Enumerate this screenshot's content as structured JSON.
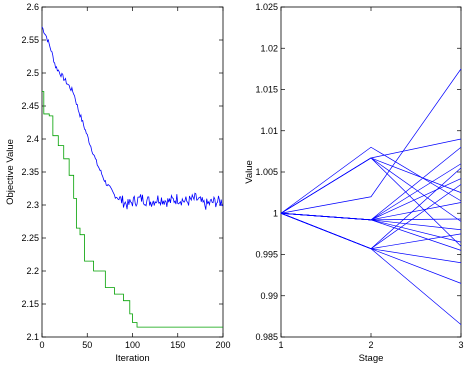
{
  "chart_data": [
    {
      "type": "line",
      "xlabel": "Iteration",
      "ylabel": "Objective Value",
      "xlim": [
        0,
        200
      ],
      "ylim": [
        2.1,
        2.6
      ],
      "xticks": [
        "0",
        "50",
        "100",
        "150",
        "200"
      ],
      "yticks": [
        "2.1",
        "2.15",
        "2.2",
        "2.25",
        "2.3",
        "2.35",
        "2.4",
        "2.45",
        "2.5",
        "2.55",
        "2.6"
      ],
      "grid": false,
      "series": [
        {
          "color": "#0000ff",
          "style": "noisy",
          "points": [
            [
              0,
              2.57
            ],
            [
              5,
              2.555
            ],
            [
              10,
              2.535
            ],
            [
              15,
              2.51
            ],
            [
              20,
              2.5
            ],
            [
              25,
              2.49
            ],
            [
              30,
              2.48
            ],
            [
              35,
              2.47
            ],
            [
              40,
              2.445
            ],
            [
              45,
              2.425
            ],
            [
              50,
              2.405
            ],
            [
              55,
              2.385
            ],
            [
              60,
              2.365
            ],
            [
              65,
              2.35
            ],
            [
              70,
              2.335
            ],
            [
              75,
              2.325
            ],
            [
              80,
              2.315
            ],
            [
              85,
              2.31
            ],
            [
              90,
              2.305
            ],
            [
              95,
              2.3
            ],
            [
              100,
              2.305
            ],
            [
              110,
              2.31
            ],
            [
              120,
              2.305
            ],
            [
              130,
              2.31
            ],
            [
              140,
              2.305
            ],
            [
              150,
              2.31
            ],
            [
              160,
              2.305
            ],
            [
              170,
              2.31
            ],
            [
              180,
              2.3
            ],
            [
              190,
              2.305
            ],
            [
              200,
              2.305
            ]
          ]
        },
        {
          "color": "#00a000",
          "style": "step",
          "points": [
            [
              0,
              2.472
            ],
            [
              2,
              2.438
            ],
            [
              8,
              2.435
            ],
            [
              12,
              2.405
            ],
            [
              18,
              2.39
            ],
            [
              24,
              2.37
            ],
            [
              30,
              2.345
            ],
            [
              35,
              2.31
            ],
            [
              38,
              2.265
            ],
            [
              42,
              2.255
            ],
            [
              47,
              2.215
            ],
            [
              52,
              2.215
            ],
            [
              57,
              2.2
            ],
            [
              65,
              2.2
            ],
            [
              70,
              2.175
            ],
            [
              80,
              2.165
            ],
            [
              90,
              2.155
            ],
            [
              97,
              2.135
            ],
            [
              100,
              2.122
            ],
            [
              105,
              2.115
            ],
            [
              200,
              2.115
            ]
          ]
        }
      ]
    },
    {
      "type": "line",
      "xlabel": "Stage",
      "ylabel": "Value",
      "xlim": [
        1,
        3
      ],
      "ylim": [
        0.985,
        1.025
      ],
      "xticks": [
        "1",
        "2",
        "3"
      ],
      "yticks": [
        "0.985",
        "0.99",
        "0.995",
        "1",
        "1.005",
        "1.01",
        "1.015",
        "1.02",
        "1.025"
      ],
      "grid": false,
      "color": "#0000ff",
      "paths": [
        [
          1.0,
          1.002,
          1.0175
        ],
        [
          1.0,
          1.008,
          1.0015
        ],
        [
          1.0,
          1.0067,
          1.009
        ],
        [
          1.0,
          1.0067,
          1.0025
        ],
        [
          1.0,
          1.0067,
          0.999
        ],
        [
          1.0,
          1.0067,
          0.996
        ],
        [
          1.0,
          0.9992,
          1.008
        ],
        [
          1.0,
          0.9992,
          1.006
        ],
        [
          1.0,
          0.9992,
          1.0042
        ],
        [
          1.0,
          0.9992,
          1.0013
        ],
        [
          1.0,
          0.9992,
          0.9993
        ],
        [
          1.0,
          0.9992,
          0.998
        ],
        [
          1.0,
          0.9992,
          0.9965
        ],
        [
          1.0,
          0.9992,
          0.9955
        ],
        [
          1.0,
          0.9957,
          1.0055
        ],
        [
          1.0,
          0.9957,
          1.0035
        ],
        [
          1.0,
          0.9957,
          0.9975
        ],
        [
          1.0,
          0.9957,
          0.994
        ],
        [
          1.0,
          0.9957,
          0.9915
        ],
        [
          1.0,
          0.9957,
          0.9865
        ]
      ]
    }
  ]
}
